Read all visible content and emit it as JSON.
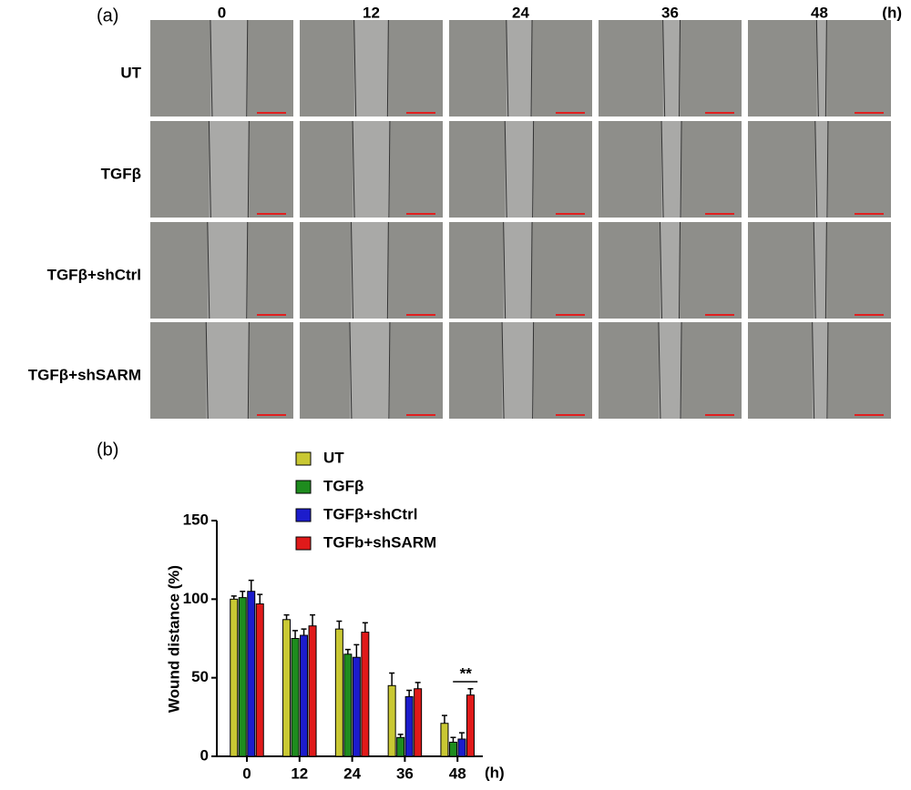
{
  "panel_a": {
    "label": "(a)",
    "columns": [
      "0",
      "12",
      "24",
      "36",
      "48"
    ],
    "unit": "(h)",
    "rows": [
      "UT",
      "TGFβ",
      "TGFβ+shCtrl",
      "TGFβ+shSARM"
    ]
  },
  "chart_data": {
    "type": "bar",
    "panel_label": "(b)",
    "ylabel": "Wound distance (%)",
    "xlabel": "(h)",
    "categories": [
      "0",
      "12",
      "24",
      "36",
      "48"
    ],
    "ylim": [
      0,
      150
    ],
    "yticks": [
      0,
      50,
      100,
      150
    ],
    "series": [
      {
        "name": "UT",
        "color": "#c9c833",
        "values": [
          100,
          87,
          81,
          45,
          21
        ],
        "errors": [
          2,
          3,
          5,
          8,
          5
        ]
      },
      {
        "name": "TGFβ",
        "color": "#1e8c1e",
        "values": [
          101,
          75,
          65,
          12,
          9
        ],
        "errors": [
          4,
          5,
          3,
          2,
          3
        ]
      },
      {
        "name": "TGFβ+shCtrl",
        "color": "#1c1ccc",
        "values": [
          105,
          77,
          63,
          38,
          11
        ],
        "errors": [
          7,
          4,
          8,
          4,
          4
        ]
      },
      {
        "name": "TGFb+shSARM",
        "color": "#e01a1a",
        "values": [
          97,
          83,
          79,
          43,
          39
        ],
        "errors": [
          6,
          7,
          6,
          4,
          4
        ]
      }
    ],
    "annotation": "**"
  }
}
